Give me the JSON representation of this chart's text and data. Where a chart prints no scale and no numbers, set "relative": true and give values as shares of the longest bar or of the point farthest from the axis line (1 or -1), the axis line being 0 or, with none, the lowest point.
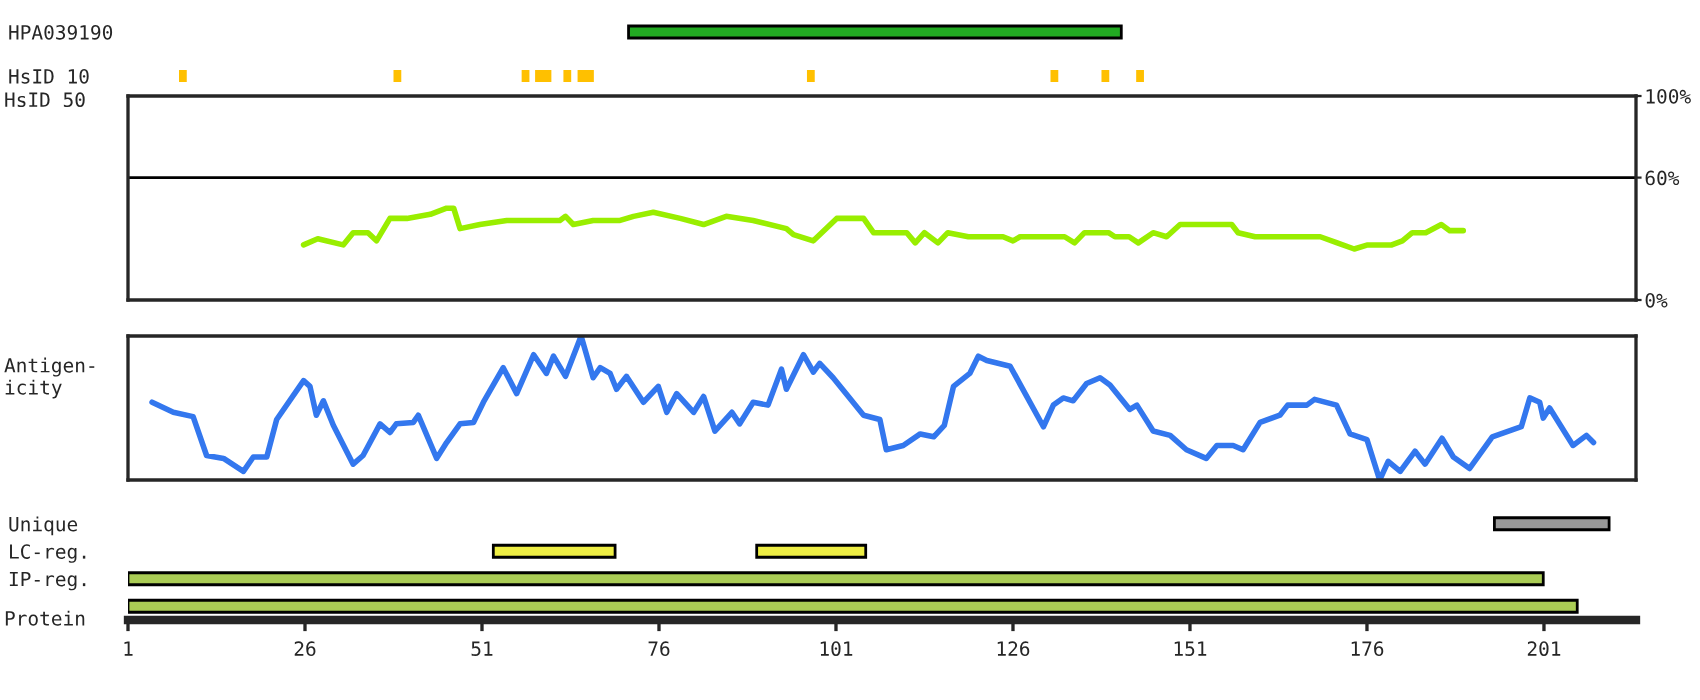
{
  "chart_data": [
    {
      "type": "bar",
      "orientation": "horizontal",
      "categories": [
        "HPA039190",
        "HsID 10"
      ],
      "xlim": [
        1,
        214
      ],
      "tick_labels": "y",
      "series": [
        {
          "color": "#22aa22",
          "values": [
            69.6,
            null
          ],
          "base": [
            71.7,
            null
          ]
        },
        {
          "color": "#ffc000",
          "values": [
            null,
            1.1
          ],
          "base": [
            null,
            8.2
          ]
        },
        {
          "color": "#ffc000",
          "values": [
            null,
            1.1
          ],
          "base": [
            null,
            38.5
          ]
        },
        {
          "color": "#ffc000",
          "values": [
            null,
            1.1
          ],
          "base": [
            null,
            56.6
          ]
        },
        {
          "color": "#ffc000",
          "values": [
            null,
            2.3
          ],
          "base": [
            null,
            58.5
          ]
        },
        {
          "color": "#ffc000",
          "values": [
            null,
            1.1
          ],
          "base": [
            null,
            62.5
          ]
        },
        {
          "color": "#ffc000",
          "values": [
            null,
            2.3
          ],
          "base": [
            null,
            64.5
          ]
        },
        {
          "color": "#ffc000",
          "values": [
            null,
            1.1
          ],
          "base": [
            null,
            96.9
          ]
        },
        {
          "color": "#ffc000",
          "values": [
            null,
            1.1
          ],
          "base": [
            null,
            131.3
          ]
        },
        {
          "color": "#ffc000",
          "values": [
            null,
            1.1
          ],
          "base": [
            null,
            138.5
          ]
        },
        {
          "color": "#ffc000",
          "values": [
            null,
            1.1
          ],
          "base": [
            null,
            143.4
          ]
        }
      ]
    },
    {
      "type": "line",
      "ylabel": "HsID 50",
      "xlim": [
        1,
        214
      ],
      "ylim": [
        0,
        100
      ],
      "yticks": [
        {
          "value": 0,
          "label": "0%"
        },
        {
          "value": 60,
          "label": "60%"
        },
        {
          "value": 100,
          "label": "100%"
        }
      ],
      "tick_labels": "y",
      "ref_lines": [
        {
          "axis": "y",
          "value": 60,
          "color": "#000000"
        }
      ],
      "series": [
        {
          "color": "#99ee00",
          "x": [
            25.8,
            27.8,
            31.4,
            32.8,
            34.9,
            36.1,
            38.0,
            40.4,
            43.7,
            46.0,
            47.0,
            47.9,
            50.7,
            54.5,
            62.0,
            62.8,
            63.9,
            66.7,
            70.5,
            72.4,
            75.2,
            79.0,
            82.3,
            85.5,
            89.3,
            94.0,
            95.0,
            97.8,
            101.1,
            104.9,
            106.3,
            111.0,
            112.2,
            113.5,
            115.4,
            116.8,
            119.7,
            124.6,
            126.0,
            127.0,
            133.3,
            134.7,
            136.1,
            139.5,
            140.4,
            142.4,
            143.7,
            145.8,
            147.7,
            149.6,
            156.9,
            157.8,
            160.2,
            169.4,
            171.8,
            174.2,
            176.1,
            179.5,
            181.0,
            182.4,
            184.3,
            186.5,
            187.7,
            189.6
          ],
          "values": [
            27,
            30,
            27,
            33,
            33,
            29,
            40,
            40,
            42,
            45,
            45,
            35,
            37,
            39,
            39,
            41,
            37,
            39,
            39,
            41,
            43,
            40,
            37,
            41,
            39,
            35,
            32,
            29,
            40,
            40,
            33,
            33,
            28,
            33,
            28,
            33,
            31,
            31,
            29,
            31,
            31,
            28,
            33,
            33,
            31,
            31,
            28,
            33,
            31,
            37,
            37,
            33,
            31,
            31,
            28,
            25,
            27,
            27,
            29,
            33,
            33,
            37,
            34,
            34
          ]
        }
      ]
    },
    {
      "type": "line",
      "relative": true,
      "ylabel": "Antigen-\nicity",
      "xlim": [
        1,
        214
      ],
      "tick_labels": false,
      "series": [
        {
          "color": "#3377ee",
          "x": [
            4.4,
            7.4,
            10.2,
            12.1,
            14.5,
            17.3,
            18.7,
            20.6,
            22.0,
            25.8,
            26.7,
            27.6,
            28.6,
            30.0,
            32.8,
            34.2,
            36.6,
            38.0,
            38.9,
            41.3,
            42.0,
            44.6,
            46.0,
            47.9,
            49.8,
            51.2,
            54.0,
            55.9,
            58.3,
            60.1,
            61.1,
            62.8,
            65.0,
            66.7,
            67.7,
            69.1,
            70.0,
            71.4,
            73.8,
            75.9,
            77.1,
            78.5,
            80.9,
            82.3,
            83.9,
            86.3,
            87.4,
            89.3,
            91.4,
            93.3,
            94.0,
            96.4,
            97.8,
            98.7,
            100.6,
            104.9,
            107.2,
            108.1,
            110.5,
            112.9,
            114.8,
            116.3,
            117.6,
            119.9,
            121.1,
            122.3,
            125.6,
            130.3,
            131.7,
            133.1,
            134.5,
            136.4,
            138.3,
            139.7,
            142.5,
            143.5,
            145.8,
            148.2,
            150.5,
            153.3,
            154.8,
            157.1,
            158.5,
            160.9,
            163.7,
            164.8,
            167.5,
            168.6,
            171.7,
            173.6,
            176.0,
            177.8,
            179.0,
            180.7,
            182.8,
            184.2,
            186.6,
            188.2,
            190.5,
            193.7,
            197.8,
            199.0,
            200.4,
            200.9,
            201.8,
            205.1,
            207.0,
            208.0
          ],
          "values": [
            0.54,
            0.47,
            0.44,
            0.17,
            0.15,
            0.06,
            0.16,
            0.16,
            0.42,
            0.69,
            0.65,
            0.45,
            0.55,
            0.38,
            0.11,
            0.17,
            0.39,
            0.33,
            0.39,
            0.4,
            0.45,
            0.15,
            0.26,
            0.39,
            0.4,
            0.54,
            0.78,
            0.6,
            0.87,
            0.74,
            0.86,
            0.72,
            1.0,
            0.71,
            0.78,
            0.74,
            0.63,
            0.72,
            0.54,
            0.65,
            0.47,
            0.6,
            0.47,
            0.58,
            0.34,
            0.47,
            0.39,
            0.54,
            0.52,
            0.77,
            0.63,
            0.87,
            0.75,
            0.81,
            0.71,
            0.45,
            0.42,
            0.21,
            0.24,
            0.32,
            0.3,
            0.38,
            0.65,
            0.74,
            0.86,
            0.83,
            0.79,
            0.37,
            0.52,
            0.57,
            0.55,
            0.67,
            0.71,
            0.66,
            0.49,
            0.52,
            0.34,
            0.31,
            0.21,
            0.15,
            0.24,
            0.24,
            0.21,
            0.4,
            0.45,
            0.52,
            0.52,
            0.56,
            0.52,
            0.32,
            0.28,
            0.0,
            0.13,
            0.06,
            0.2,
            0.11,
            0.29,
            0.16,
            0.08,
            0.3,
            0.37,
            0.57,
            0.54,
            0.43,
            0.5,
            0.24,
            0.31,
            0.26
          ]
        }
      ]
    },
    {
      "type": "bar",
      "orientation": "horizontal",
      "categories": [
        "Unique",
        "LC-reg.",
        "IP-reg.",
        null
      ],
      "xlabel": "Protein",
      "xlim": [
        1,
        214
      ],
      "xticks": [
        1,
        26,
        51,
        76,
        101,
        126,
        151,
        176,
        201
      ],
      "series": [
        {
          "colors": [
            "#999999",
            "#eeee44",
            "#aacc55",
            "#aacc55"
          ],
          "values": [
            16.2,
            17.2,
            199.9,
            204.7
          ],
          "base": [
            194.0,
            52.6,
            1.0,
            1.0
          ]
        },
        {
          "color": "#eeee44",
          "values": [
            null,
            15.4,
            null,
            null
          ],
          "base": [
            null,
            89.8,
            null,
            null
          ]
        }
      ]
    }
  ]
}
